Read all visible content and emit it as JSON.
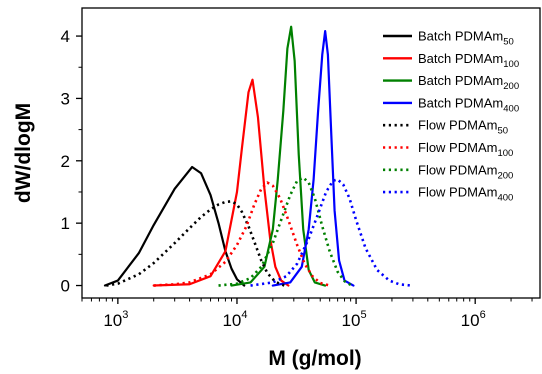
{
  "chart_data": {
    "type": "line",
    "xlabel": "M (g/mol)",
    "ylabel": "dW/dlogM",
    "x_scale": "log",
    "xlim": [
      500,
      3500000
    ],
    "ylim": [
      -0.2,
      4.45
    ],
    "x_ticks": [
      {
        "value": 1000,
        "base": "10",
        "exp": "3"
      },
      {
        "value": 10000,
        "base": "10",
        "exp": "4"
      },
      {
        "value": 100000,
        "base": "10",
        "exp": "5"
      },
      {
        "value": 1000000,
        "base": "10",
        "exp": "6"
      }
    ],
    "y_ticks": [
      0,
      1,
      2,
      3,
      4
    ],
    "grid": false,
    "legend_position": "top-right",
    "series": [
      {
        "name_main": "Batch PDMAm",
        "name_sub": "50",
        "color": "#000000",
        "dash": "solid",
        "x": [
          780,
          1000,
          1500,
          2000,
          3000,
          4200,
          5000,
          6000,
          7000,
          8000,
          9000,
          10000,
          11500
        ],
        "y": [
          0.0,
          0.08,
          0.52,
          0.97,
          1.55,
          1.9,
          1.8,
          1.45,
          1.0,
          0.55,
          0.27,
          0.1,
          0.0
        ]
      },
      {
        "name_main": "Batch PDMAm",
        "name_sub": "100",
        "color": "#ff0000",
        "dash": "solid",
        "x": [
          2000,
          4000,
          6000,
          8000,
          10000,
          11000,
          12500,
          13500,
          15000,
          17000,
          19000,
          21000,
          23500,
          27000
        ],
        "y": [
          0.0,
          0.02,
          0.15,
          0.55,
          1.5,
          2.2,
          3.1,
          3.3,
          2.7,
          1.55,
          0.75,
          0.3,
          0.08,
          0.0
        ]
      },
      {
        "name_main": "Batch PDMAm",
        "name_sub": "200",
        "color": "#008000",
        "dash": "solid",
        "x": [
          9000,
          13000,
          17000,
          20000,
          22000,
          24500,
          26500,
          28500,
          30500,
          33000,
          36000,
          40000,
          45000,
          55000
        ],
        "y": [
          0.0,
          0.05,
          0.3,
          0.9,
          1.7,
          2.8,
          3.8,
          4.15,
          3.6,
          2.1,
          0.9,
          0.25,
          0.05,
          0.0
        ]
      },
      {
        "name_main": "Batch PDMAm",
        "name_sub": "400",
        "color": "#0000ff",
        "dash": "solid",
        "x": [
          20000,
          28000,
          35000,
          40000,
          44000,
          48000,
          52000,
          55000,
          58000,
          62000,
          66000,
          72000,
          80000,
          95000
        ],
        "y": [
          0.0,
          0.05,
          0.3,
          0.9,
          1.7,
          2.8,
          3.7,
          4.08,
          3.7,
          2.4,
          1.2,
          0.4,
          0.08,
          0.0
        ]
      },
      {
        "name_main": "Flow PDMAm",
        "name_sub": "50",
        "color": "#000000",
        "dash": "dotted",
        "x": [
          800,
          1000,
          1500,
          2000,
          3000,
          4000,
          5000,
          6000,
          7000,
          8000,
          9000,
          10000,
          11000,
          12500,
          14000,
          16000,
          18000,
          21000,
          25000
        ],
        "y": [
          0.0,
          0.03,
          0.18,
          0.36,
          0.68,
          0.92,
          1.1,
          1.22,
          1.3,
          1.34,
          1.35,
          1.3,
          1.18,
          0.95,
          0.7,
          0.4,
          0.2,
          0.06,
          0.0
        ]
      },
      {
        "name_main": "Flow PDMAm",
        "name_sub": "100",
        "color": "#ff0000",
        "dash": "dotted",
        "x": [
          2000,
          3000,
          4000,
          6000,
          8000,
          10000,
          12000,
          14000,
          16000,
          18000,
          20000,
          23000,
          27000,
          32000,
          37000,
          43000,
          50000,
          60000
        ],
        "y": [
          0.0,
          0.02,
          0.05,
          0.18,
          0.38,
          0.65,
          0.95,
          1.3,
          1.55,
          1.65,
          1.6,
          1.4,
          1.05,
          0.65,
          0.35,
          0.15,
          0.04,
          0.0
        ]
      },
      {
        "name_main": "Flow PDMAm",
        "name_sub": "200",
        "color": "#008000",
        "dash": "dotted",
        "x": [
          7000,
          10000,
          13000,
          16000,
          20000,
          24000,
          28000,
          32000,
          36000,
          40000,
          45000,
          52000,
          60000,
          70000,
          80000,
          92000
        ],
        "y": [
          0.0,
          0.03,
          0.12,
          0.3,
          0.68,
          1.1,
          1.45,
          1.68,
          1.73,
          1.65,
          1.4,
          0.95,
          0.55,
          0.22,
          0.07,
          0.0
        ]
      },
      {
        "name_main": "Flow PDMAm",
        "name_sub": "400",
        "color": "#0000ff",
        "dash": "dotted",
        "x": [
          13000,
          20000,
          26000,
          32000,
          40000,
          48000,
          56000,
          64000,
          70000,
          78000,
          88000,
          100000,
          120000,
          150000,
          190000,
          230000,
          290000
        ],
        "y": [
          0.0,
          0.05,
          0.15,
          0.35,
          0.75,
          1.15,
          1.5,
          1.68,
          1.7,
          1.62,
          1.4,
          1.05,
          0.6,
          0.25,
          0.08,
          0.02,
          0.0
        ]
      }
    ]
  }
}
